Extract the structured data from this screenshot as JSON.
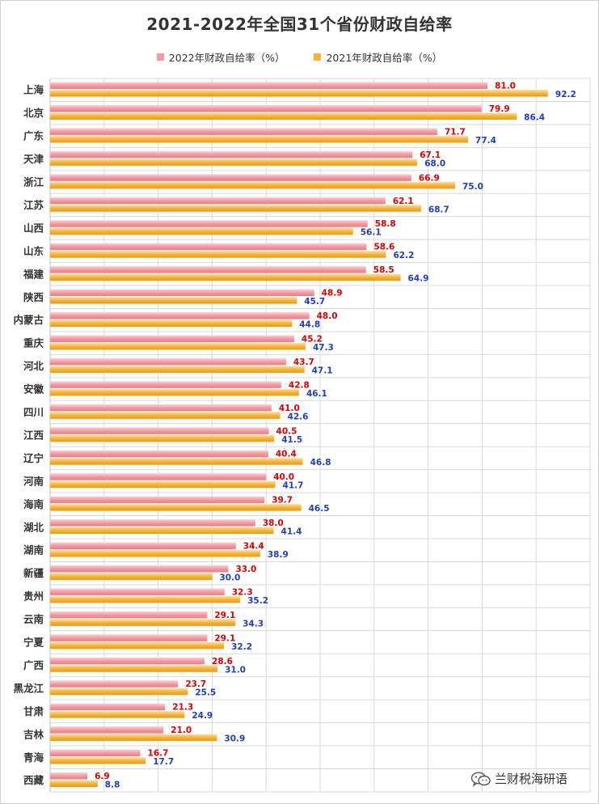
{
  "chart_data": {
    "type": "bar",
    "orientation": "horizontal",
    "title": "2021-2022年全国31个省份财政自给率",
    "legend_position": "top",
    "grid": true,
    "xlim": [
      0,
      100
    ],
    "categories": [
      "上海",
      "北京",
      "广东",
      "天津",
      "浙江",
      "江苏",
      "山西",
      "山东",
      "福建",
      "陕西",
      "内蒙古",
      "重庆",
      "河北",
      "安徽",
      "四川",
      "江西",
      "辽宁",
      "河南",
      "海南",
      "湖北",
      "湖南",
      "新疆",
      "贵州",
      "云南",
      "宁夏",
      "广西",
      "黑龙江",
      "甘肃",
      "吉林",
      "青海",
      "西藏"
    ],
    "series": [
      {
        "name": "2022年财政自给率（%）",
        "color": "#f39aa3",
        "label_color": "#e00000",
        "values": [
          81.0,
          79.9,
          71.7,
          67.1,
          66.9,
          62.1,
          58.8,
          58.6,
          58.5,
          48.9,
          48.0,
          45.2,
          43.7,
          42.8,
          41.0,
          40.5,
          40.4,
          40.0,
          39.7,
          38.0,
          34.4,
          33.0,
          32.3,
          29.1,
          29.1,
          28.6,
          23.7,
          21.3,
          21.0,
          16.7,
          6.9
        ]
      },
      {
        "name": "2021年财政自给率（%）",
        "color": "#f6b43a",
        "label_color": "#1f3fbf",
        "values": [
          92.2,
          86.4,
          77.4,
          68.0,
          75.0,
          68.7,
          56.1,
          62.2,
          64.9,
          45.7,
          44.8,
          47.3,
          47.1,
          46.1,
          42.6,
          41.5,
          46.8,
          41.7,
          46.5,
          41.4,
          38.9,
          30.0,
          35.2,
          34.3,
          32.2,
          31.0,
          25.5,
          24.9,
          30.9,
          17.7,
          8.8
        ]
      }
    ]
  },
  "watermark": {
    "text": "兰财税海研语",
    "icon": "wechat-icon"
  }
}
